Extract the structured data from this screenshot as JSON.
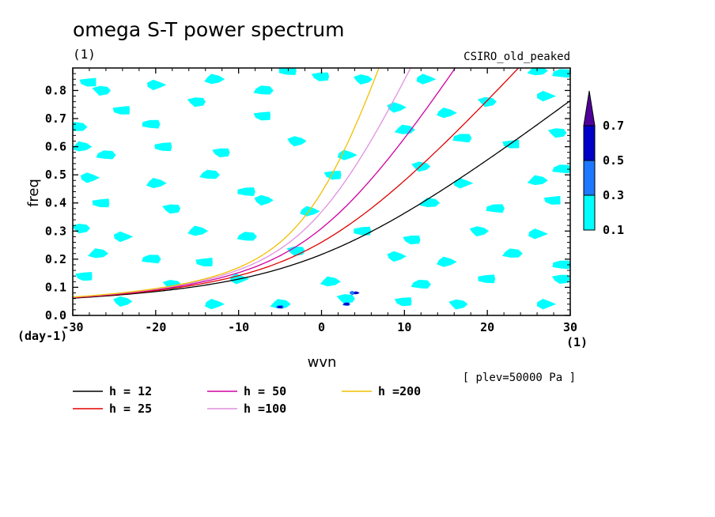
{
  "title": "omega S-T power spectrum",
  "subtitle": "(1)",
  "model_label": "CSIRO_old_peaked",
  "level_note": "[ plev=50000 Pa ]",
  "chart_data": {
    "type": "contour",
    "xlabel": "wvn",
    "ylabel": "freq",
    "x_unit": "(1)",
    "y_unit": "(day-1)",
    "xlim": [
      -30,
      30
    ],
    "ylim": [
      0,
      0.88
    ],
    "x_ticks": [
      "-30",
      "-20",
      "-10",
      "0",
      "10",
      "20",
      "30"
    ],
    "x_tick_values": [
      -30,
      -20,
      -10,
      0,
      10,
      20,
      30
    ],
    "y_ticks": [
      "0.0",
      "0.1",
      "0.2",
      "0.3",
      "0.4",
      "0.5",
      "0.6",
      "0.7",
      "0.8"
    ],
    "y_tick_values": [
      0,
      0.1,
      0.2,
      0.3,
      0.4,
      0.5,
      0.6,
      0.7,
      0.8
    ],
    "contour_levels": {
      "labels": [
        "0.1",
        "0.3",
        "0.5",
        "0.7"
      ],
      "values": [
        0.1,
        0.3,
        0.5,
        0.7
      ],
      "colors": [
        "#00ffff",
        "#1e78ff",
        "#0000c8",
        "#50009a"
      ]
    },
    "shaded_patches": [
      {
        "x": -28,
        "y": 0.83,
        "level": 0
      },
      {
        "x": -26.5,
        "y": 0.8,
        "level": 0
      },
      {
        "x": -20,
        "y": 0.82,
        "level": 0
      },
      {
        "x": -13,
        "y": 0.84,
        "level": 0
      },
      {
        "x": -7,
        "y": 0.8,
        "level": 0
      },
      {
        "x": -4,
        "y": 0.87,
        "level": 0
      },
      {
        "x": 0,
        "y": 0.85,
        "level": 0
      },
      {
        "x": 5,
        "y": 0.84,
        "level": 0
      },
      {
        "x": 12.5,
        "y": 0.84,
        "level": 0
      },
      {
        "x": 26,
        "y": 0.87,
        "level": 0
      },
      {
        "x": 29,
        "y": 0.86,
        "level": 0
      },
      {
        "x": -24,
        "y": 0.73,
        "level": 0
      },
      {
        "x": -15,
        "y": 0.76,
        "level": 0
      },
      {
        "x": 9,
        "y": 0.74,
        "level": 0
      },
      {
        "x": 15,
        "y": 0.72,
        "level": 0
      },
      {
        "x": -29.5,
        "y": 0.67,
        "level": 0
      },
      {
        "x": -20.5,
        "y": 0.68,
        "level": 0
      },
      {
        "x": -7,
        "y": 0.71,
        "level": 0
      },
      {
        "x": 20,
        "y": 0.76,
        "level": 0
      },
      {
        "x": 27,
        "y": 0.78,
        "level": 0
      },
      {
        "x": -29,
        "y": 0.6,
        "level": 0
      },
      {
        "x": -26,
        "y": 0.57,
        "level": 0
      },
      {
        "x": -19,
        "y": 0.6,
        "level": 0
      },
      {
        "x": -12,
        "y": 0.58,
        "level": 0
      },
      {
        "x": -3,
        "y": 0.62,
        "level": 0
      },
      {
        "x": 3,
        "y": 0.57,
        "level": 0
      },
      {
        "x": 10,
        "y": 0.66,
        "level": 0
      },
      {
        "x": 17,
        "y": 0.63,
        "level": 0
      },
      {
        "x": 23,
        "y": 0.61,
        "level": 0
      },
      {
        "x": 28.5,
        "y": 0.65,
        "level": 0
      },
      {
        "x": -28,
        "y": 0.49,
        "level": 0
      },
      {
        "x": -20,
        "y": 0.47,
        "level": 0
      },
      {
        "x": -13.5,
        "y": 0.5,
        "level": 0
      },
      {
        "x": -9,
        "y": 0.44,
        "level": 0
      },
      {
        "x": 1.5,
        "y": 0.5,
        "level": 0
      },
      {
        "x": 12,
        "y": 0.53,
        "level": 0
      },
      {
        "x": 17,
        "y": 0.47,
        "level": 0
      },
      {
        "x": 26,
        "y": 0.48,
        "level": 0
      },
      {
        "x": 29,
        "y": 0.52,
        "level": 0
      },
      {
        "x": -26.5,
        "y": 0.4,
        "level": 0
      },
      {
        "x": -18,
        "y": 0.38,
        "level": 0
      },
      {
        "x": -7,
        "y": 0.41,
        "level": 0
      },
      {
        "x": -1.5,
        "y": 0.37,
        "level": 0
      },
      {
        "x": 13,
        "y": 0.4,
        "level": 0
      },
      {
        "x": 21,
        "y": 0.38,
        "level": 0
      },
      {
        "x": 28,
        "y": 0.41,
        "level": 0
      },
      {
        "x": -29,
        "y": 0.31,
        "level": 0
      },
      {
        "x": -24,
        "y": 0.28,
        "level": 0
      },
      {
        "x": -15,
        "y": 0.3,
        "level": 0
      },
      {
        "x": -9,
        "y": 0.28,
        "level": 0
      },
      {
        "x": 5,
        "y": 0.3,
        "level": 0
      },
      {
        "x": 11,
        "y": 0.27,
        "level": 0
      },
      {
        "x": 19,
        "y": 0.3,
        "level": 0
      },
      {
        "x": 26,
        "y": 0.29,
        "level": 0
      },
      {
        "x": -27,
        "y": 0.22,
        "level": 0
      },
      {
        "x": -20.5,
        "y": 0.2,
        "level": 0
      },
      {
        "x": -14,
        "y": 0.19,
        "level": 0
      },
      {
        "x": -3,
        "y": 0.23,
        "level": 0
      },
      {
        "x": 9,
        "y": 0.21,
        "level": 0
      },
      {
        "x": 15,
        "y": 0.19,
        "level": 0
      },
      {
        "x": 23,
        "y": 0.22,
        "level": 0
      },
      {
        "x": 29,
        "y": 0.18,
        "level": 0
      },
      {
        "x": -28.5,
        "y": 0.14,
        "level": 0
      },
      {
        "x": -18,
        "y": 0.11,
        "level": 0
      },
      {
        "x": -10,
        "y": 0.13,
        "level": 0
      },
      {
        "x": 1,
        "y": 0.12,
        "level": 0
      },
      {
        "x": 12,
        "y": 0.11,
        "level": 0
      },
      {
        "x": 20,
        "y": 0.13,
        "level": 0
      },
      {
        "x": 29,
        "y": 0.13,
        "level": 0
      },
      {
        "x": -24,
        "y": 0.05,
        "level": 0
      },
      {
        "x": -13,
        "y": 0.04,
        "level": 0
      },
      {
        "x": -5,
        "y": 0.04,
        "level": 0
      },
      {
        "x": -5,
        "y": 0.03,
        "level": 1
      },
      {
        "x": -5,
        "y": 0.03,
        "level": 2
      },
      {
        "x": 3,
        "y": 0.06,
        "level": 0
      },
      {
        "x": 3.8,
        "y": 0.08,
        "level": 1
      },
      {
        "x": 4.2,
        "y": 0.08,
        "level": 2
      },
      {
        "x": 3,
        "y": 0.04,
        "level": 1
      },
      {
        "x": 3,
        "y": 0.04,
        "level": 2
      },
      {
        "x": 10,
        "y": 0.05,
        "level": 0
      },
      {
        "x": 16.5,
        "y": 0.04,
        "level": 0
      },
      {
        "x": 27,
        "y": 0.04,
        "level": 0
      }
    ],
    "series": [
      {
        "name": "h = 12",
        "h": 12,
        "color": "#000000"
      },
      {
        "name": "h = 25",
        "h": 25,
        "color": "#e00000"
      },
      {
        "name": "h = 50",
        "h": 50,
        "color": "#d000a0"
      },
      {
        "name": "h =100",
        "h": 100,
        "color": "#e090e0"
      },
      {
        "name": "h =200",
        "h": 200,
        "color": "#f0c000"
      }
    ]
  }
}
